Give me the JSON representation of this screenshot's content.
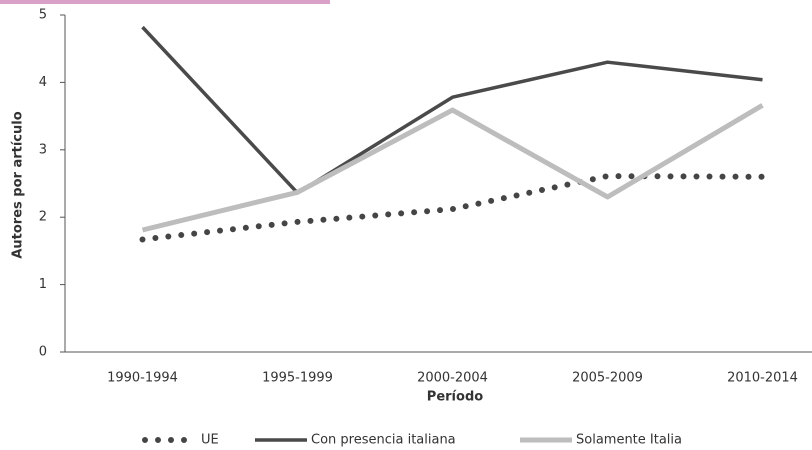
{
  "chart_data": {
    "type": "line",
    "x_label": "Período",
    "y_label": "Autores por artículo",
    "categories": [
      "1990-1994",
      "1995-1999",
      "2000-2004",
      "2005-2009",
      "2010-2014"
    ],
    "series": [
      {
        "name": "UE",
        "color": "#454545",
        "line_style": "dotted",
        "values": [
          1.67,
          1.93,
          2.12,
          2.61,
          2.6
        ]
      },
      {
        "name": "Con presencia italiana",
        "color": "#4a4a4a",
        "line_style": "solid",
        "values": [
          4.82,
          2.36,
          3.78,
          4.3,
          4.04
        ]
      },
      {
        "name": "Solamente Italia",
        "color": "#bdbdbd",
        "line_style": "solid",
        "values": [
          1.81,
          2.37,
          3.59,
          2.3,
          3.66
        ]
      }
    ],
    "ylim": [
      0,
      5
    ],
    "yticks": [
      0,
      1,
      2,
      3,
      4,
      5
    ],
    "grid": false,
    "legend": "bottom"
  }
}
